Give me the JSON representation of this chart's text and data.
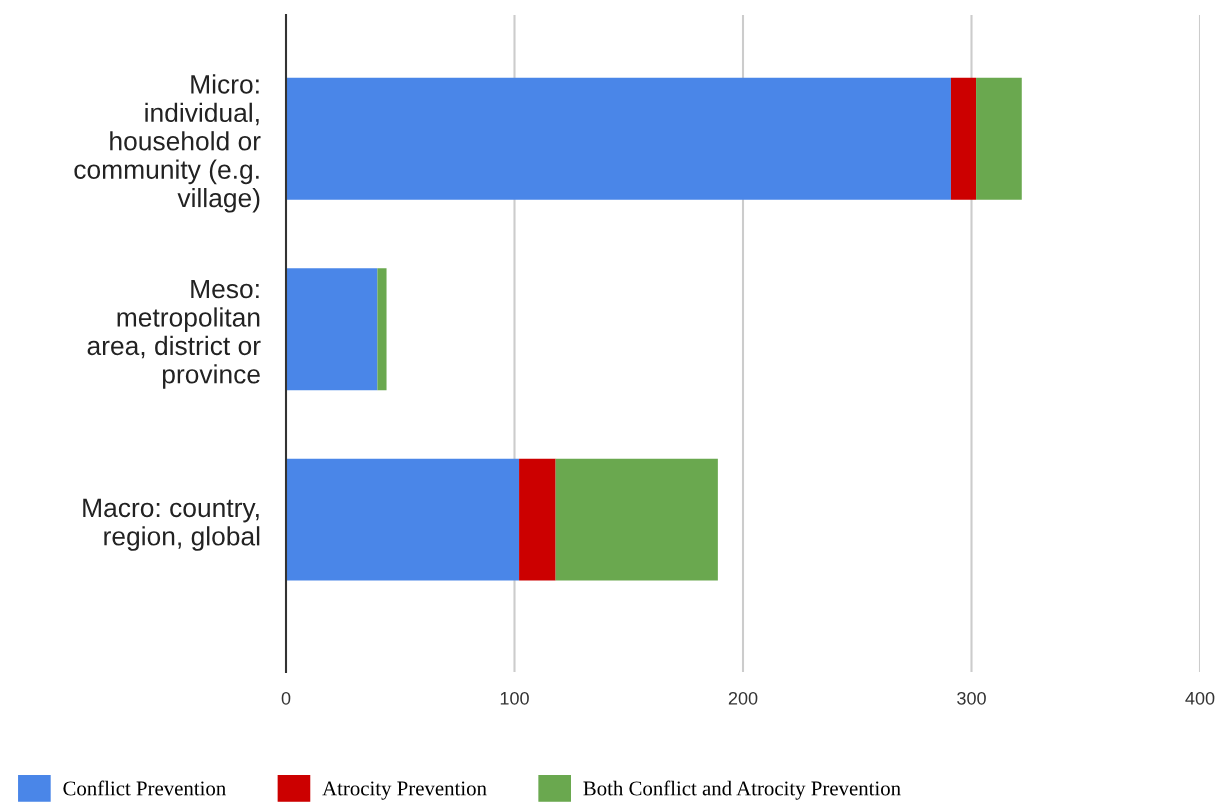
{
  "chart_data": {
    "type": "bar",
    "orientation": "horizontal",
    "stacked": true,
    "categories": [
      "Micro:\nindividual,\nhousehold or\ncommunity (e.g.\nvillage)",
      "Meso:\nmetropolitan\narea, district or\nprovince",
      "Macro: country,\nregion, global"
    ],
    "series": [
      {
        "name": "Conflict Prevention",
        "color": "#4a86e8",
        "values": [
          291,
          40,
          102
        ]
      },
      {
        "name": "Atrocity Prevention",
        "color": "#cc0000",
        "values": [
          11,
          0,
          16
        ]
      },
      {
        "name": "Both Conflict and Atrocity Prevention",
        "color": "#6aa84f",
        "values": [
          20,
          4,
          71
        ]
      }
    ],
    "xlim": [
      0,
      400
    ],
    "xticks": [
      0,
      100,
      200,
      300,
      400
    ],
    "grid": "x",
    "legend": "bottom"
  }
}
